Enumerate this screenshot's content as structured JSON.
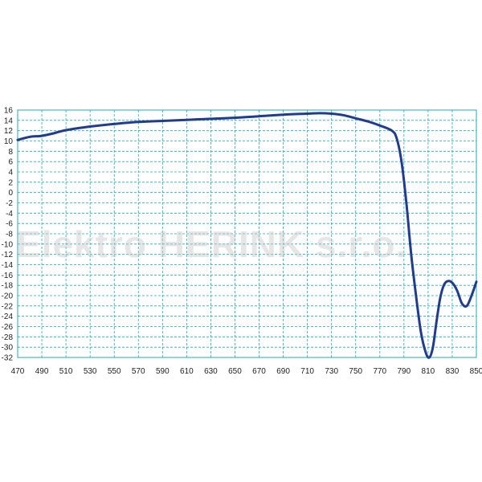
{
  "watermark": "Elektro HERINK s.r.o.",
  "colors": {
    "grid": "#23a9b8",
    "line": "#1f3c8e",
    "background": "#ffffff"
  },
  "chart_data": {
    "type": "line",
    "title": "",
    "xlabel": "",
    "ylabel": "",
    "xlim": [
      470,
      850
    ],
    "ylim": [
      -32,
      16
    ],
    "x_ticks": [
      470,
      490,
      510,
      530,
      550,
      570,
      590,
      610,
      630,
      650,
      670,
      690,
      710,
      730,
      750,
      770,
      790,
      810,
      830,
      850
    ],
    "y_ticks": [
      16,
      14,
      12,
      10,
      8,
      6,
      4,
      2,
      0,
      -2,
      -4,
      -6,
      -8,
      -10,
      -12,
      -14,
      -16,
      -18,
      -20,
      -22,
      -24,
      -26,
      -28,
      -30,
      -32
    ],
    "grid": true,
    "legend": "none",
    "series": [
      {
        "x": [
          470,
          480,
          490,
          500,
          510,
          530,
          550,
          570,
          590,
          610,
          630,
          650,
          670,
          690,
          710,
          720,
          730,
          740,
          750,
          760,
          770,
          780,
          784,
          788,
          792,
          796,
          800,
          804,
          808,
          811,
          814,
          817,
          820,
          823,
          826,
          830,
          834,
          838,
          842,
          846,
          850
        ],
        "y": [
          10.2,
          10.8,
          11.0,
          11.5,
          12.1,
          12.8,
          13.3,
          13.7,
          13.9,
          14.1,
          14.3,
          14.5,
          14.8,
          15.1,
          15.3,
          15.4,
          15.3,
          15.0,
          14.4,
          13.8,
          13.0,
          12.0,
          10.5,
          6.0,
          -2.0,
          -12.0,
          -20.0,
          -27.0,
          -31.0,
          -32.0,
          -30.0,
          -25.0,
          -20.5,
          -18.0,
          -17.2,
          -17.5,
          -19.0,
          -21.5,
          -22.0,
          -20.0,
          -17.3
        ]
      }
    ]
  }
}
